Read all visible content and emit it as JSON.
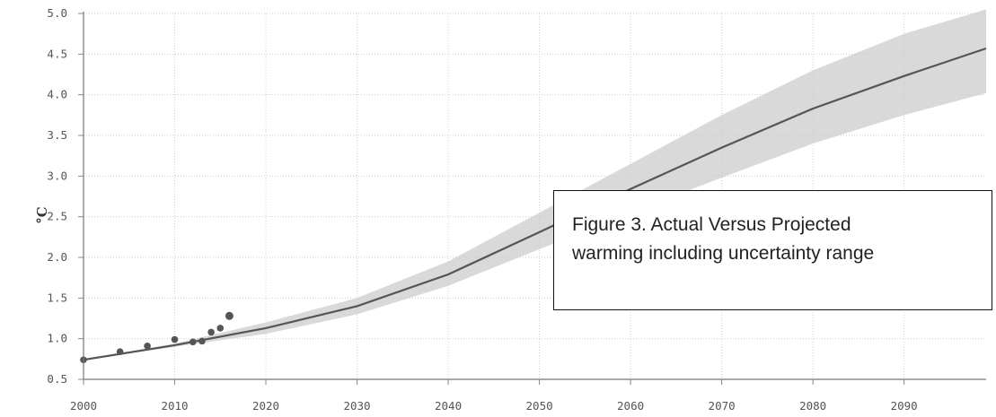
{
  "chart_data": {
    "type": "line",
    "title": "",
    "xlabel": "",
    "ylabel": "°C",
    "xlim": [
      2000,
      2099
    ],
    "ylim": [
      0.5,
      5.0
    ],
    "x_ticks": [
      "2000",
      "2010",
      "2020",
      "2030",
      "2040",
      "2050",
      "2060",
      "2070",
      "2080",
      "2090"
    ],
    "y_ticks": [
      "0.5",
      "1.0",
      "1.5",
      "2.0",
      "2.5",
      "3.0",
      "3.5",
      "4.0",
      "4.5",
      "5.0"
    ],
    "grid": true,
    "colors": {
      "line": "#555555",
      "band": "#cccccc",
      "points": "#555555",
      "grid": "#cfcfcf"
    },
    "series": [
      {
        "kind": "projection-mean",
        "x": [
          2000,
          2010,
          2020,
          2030,
          2040,
          2050,
          2060,
          2070,
          2080,
          2090,
          2099
        ],
        "y": [
          0.74,
          0.92,
          1.13,
          1.4,
          1.79,
          2.31,
          2.84,
          3.35,
          3.83,
          4.23,
          4.57
        ]
      },
      {
        "kind": "uncertainty-band",
        "x": [
          2000,
          2010,
          2020,
          2030,
          2040,
          2050,
          2060,
          2070,
          2080,
          2090,
          2099
        ],
        "y_low": [
          0.74,
          0.9,
          1.06,
          1.3,
          1.65,
          2.1,
          2.55,
          2.98,
          3.4,
          3.75,
          4.02
        ],
        "y_high": [
          0.74,
          0.94,
          1.2,
          1.5,
          1.95,
          2.55,
          3.15,
          3.75,
          4.3,
          4.75,
          5.05
        ]
      },
      {
        "kind": "observed-points",
        "x": [
          2000,
          2004,
          2007,
          2010,
          2012,
          2013,
          2014,
          2015,
          2016
        ],
        "y": [
          0.74,
          0.84,
          0.91,
          0.99,
          0.96,
          0.97,
          1.08,
          1.13,
          1.28
        ]
      }
    ]
  },
  "caption": {
    "line1": "Figure 3. Actual Versus Projected",
    "line2": "warming including uncertainty range"
  }
}
